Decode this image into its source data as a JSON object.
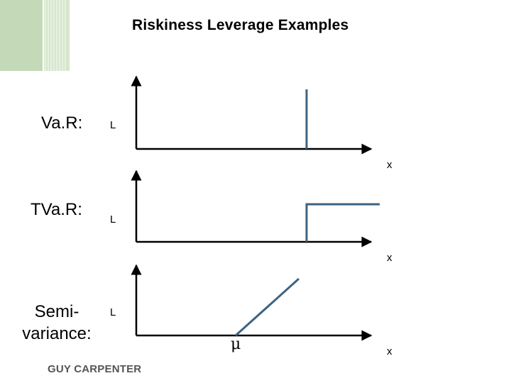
{
  "title": "Riskiness Leverage Examples",
  "colors": {
    "axis": "#000000",
    "curve": "#3d6381",
    "decor": "#c3d9b8",
    "brand": "#555555"
  },
  "rows": [
    {
      "label": "Va.R:",
      "y_axis_label": "L",
      "x_axis_label": "x",
      "curve": "vertical spike at threshold"
    },
    {
      "label": "TVa.R:",
      "y_axis_label": "L",
      "x_axis_label": "x",
      "curve": "step up at threshold"
    },
    {
      "label_line1": "Semi-",
      "label_line2": "variance:",
      "y_axis_label": "L",
      "x_axis_label": "x",
      "curve": "linear rising from mean",
      "mean_symbol": "μ"
    }
  ],
  "footer": {
    "brand": "GUY CARPENTER"
  }
}
